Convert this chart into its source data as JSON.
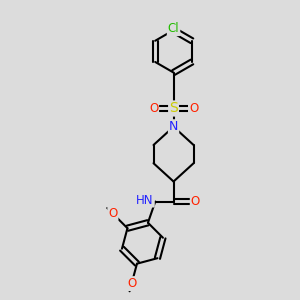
{
  "background_color": "#dcdcdc",
  "atom_colors": {
    "C": "#000000",
    "N": "#2222ff",
    "O": "#ff2200",
    "S": "#cccc00",
    "Cl": "#22bb00",
    "H": "#000000"
  },
  "figsize": [
    3.0,
    3.0
  ],
  "dpi": 100,
  "xlim": [
    0,
    10
  ],
  "ylim": [
    0,
    10
  ]
}
